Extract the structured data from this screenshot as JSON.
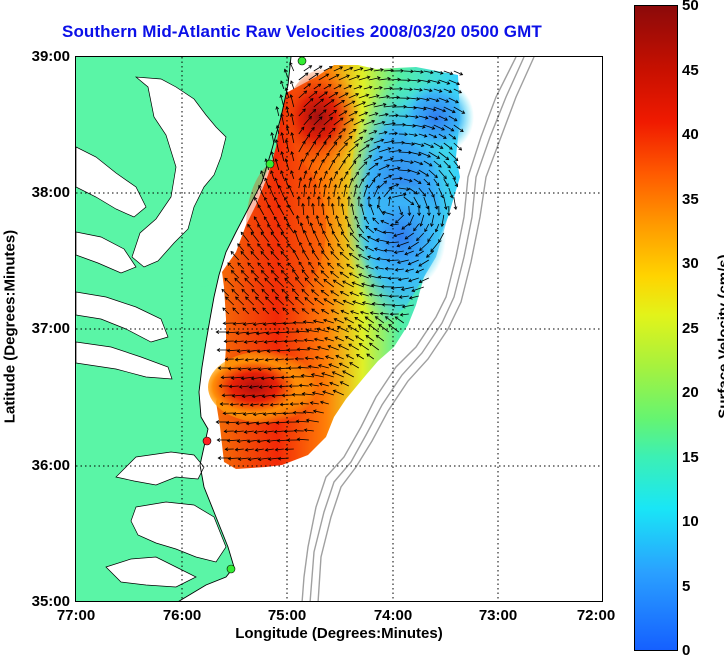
{
  "title": "Southern Mid-Atlantic Raw Velocities 2008/03/20 0500 GMT",
  "xlabel": "Longitude (Degrees:Minutes)",
  "ylabel": "Latitude (Degrees:Minutes)",
  "x_ticks": [
    "77:00",
    "76:00",
    "75:00",
    "74:00",
    "73:00",
    "72:00"
  ],
  "y_ticks": [
    "39:00",
    "38:00",
    "37:00",
    "36:00",
    "35:00"
  ],
  "colorbar": {
    "label": "Surface Velocity (cm/s)",
    "ticks": [
      "50",
      "45",
      "40",
      "35",
      "30",
      "25",
      "20",
      "15",
      "10",
      "5",
      "0"
    ],
    "range": [
      0,
      50
    ]
  },
  "colors": {
    "land": "#5af5a6",
    "title": "#0b10e8",
    "bathymetry": "#a0a0a0",
    "station": "#33ee33",
    "station_active": "#ff2020"
  },
  "map": {
    "lon_range": [
      -77,
      -72
    ],
    "lat_range": [
      35,
      39
    ],
    "grid": true
  }
}
